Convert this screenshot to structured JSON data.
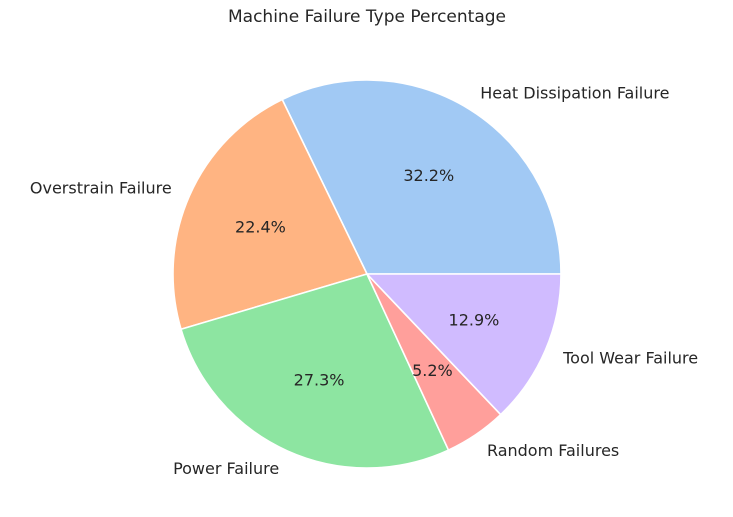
{
  "chart_data": {
    "type": "pie",
    "title": "Machine Failure Type Percentage",
    "start_angle_deg": 0,
    "direction": "counterclockwise",
    "slices": [
      {
        "label": "Heat Dissipation Failure",
        "percent": 32.2,
        "pct_text": "32.2%",
        "color": "#a1c9f4"
      },
      {
        "label": "Overstrain Failure",
        "percent": 22.4,
        "pct_text": "22.4%",
        "color": "#ffb482"
      },
      {
        "label": "Power Failure",
        "percent": 27.3,
        "pct_text": "27.3%",
        "color": "#8de5a1"
      },
      {
        "label": "Random Failures",
        "percent": 5.2,
        "pct_text": "5.2%",
        "color": "#ff9f9b"
      },
      {
        "label": "Tool Wear Failure",
        "percent": 12.9,
        "pct_text": "12.9%",
        "color": "#d0bbff"
      }
    ]
  }
}
